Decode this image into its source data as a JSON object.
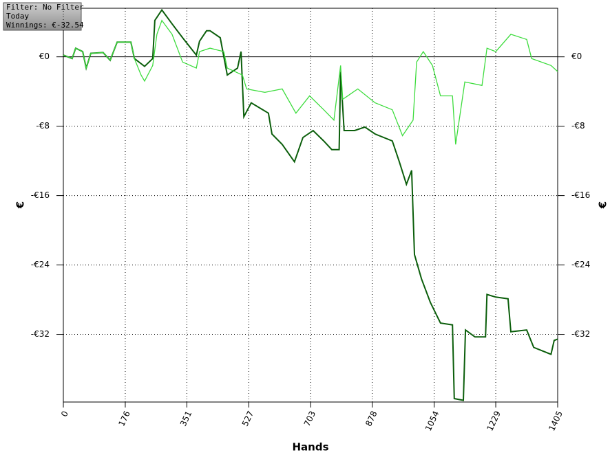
{
  "chart_data": {
    "type": "line",
    "info": [
      "Filter: No Filter",
      "Today",
      "Winnings: €-32.54"
    ],
    "xlabel": "Hands",
    "ylabel": "€",
    "xlim": [
      0,
      1405
    ],
    "ylim": [
      -39.8,
      5.6
    ],
    "xticks": [
      0,
      176,
      351,
      527,
      703,
      878,
      1054,
      1229,
      1405
    ],
    "yticks": [
      {
        "value": 0,
        "label": "€0"
      },
      {
        "value": -8,
        "label": "-€8"
      },
      {
        "value": -16,
        "label": "-€16"
      },
      {
        "value": -24,
        "label": "-€24"
      },
      {
        "value": -32,
        "label": "-€32"
      }
    ],
    "grid": true,
    "series": [
      {
        "color": "#0b5e0b",
        "x": [
          0,
          25,
          35,
          55,
          65,
          78,
          113,
          133,
          153,
          192,
          202,
          231,
          254,
          260,
          280,
          309,
          339,
          378,
          387,
          407,
          417,
          446,
          466,
          495,
          505,
          513,
          534,
          583,
          593,
          622,
          657,
          681,
          710,
          740,
          763,
          784,
          788,
          798,
          828,
          857,
          886,
          935,
          955,
          975,
          990,
          998,
          1018,
          1043,
          1072,
          1106,
          1111,
          1137,
          1143,
          1170,
          1200,
          1204,
          1229,
          1264,
          1272,
          1317,
          1337,
          1386,
          1395,
          1405
        ],
        "values": [
          0.2,
          -0.2,
          1.0,
          0.6,
          -1.3,
          0.4,
          0.5,
          -0.4,
          1.7,
          1.7,
          -0.2,
          -1.1,
          -0.2,
          4.2,
          5.4,
          3.8,
          2.2,
          0.2,
          1.8,
          3.0,
          3.0,
          2.2,
          -2.1,
          -1.3,
          0.6,
          -6.9,
          -5.3,
          -6.5,
          -8.9,
          -10.1,
          -12.1,
          -9.3,
          -8.5,
          -9.7,
          -10.7,
          -10.7,
          -1.7,
          -8.5,
          -8.5,
          -8.1,
          -8.9,
          -9.7,
          -12.1,
          -14.7,
          -13.1,
          -22.8,
          -25.6,
          -28.3,
          -30.7,
          -30.9,
          -39.4,
          -39.6,
          -31.5,
          -32.3,
          -32.3,
          -27.4,
          -27.7,
          -27.9,
          -31.7,
          -31.5,
          -33.5,
          -34.3,
          -32.7,
          -32.54
        ]
      },
      {
        "color": "#3ddc3d",
        "x": [
          0,
          25,
          35,
          55,
          65,
          78,
          113,
          133,
          153,
          192,
          202,
          221,
          231,
          254,
          266,
          280,
          309,
          339,
          378,
          387,
          417,
          456,
          466,
          509,
          521,
          573,
          622,
          661,
          700,
          740,
          769,
          788,
          794,
          837,
          886,
          935,
          964,
          994,
          1004,
          1023,
          1049,
          1072,
          1106,
          1115,
          1141,
          1190,
          1204,
          1229,
          1272,
          1317,
          1331,
          1386,
          1405
        ],
        "values": [
          0.2,
          -0.2,
          1.0,
          0.6,
          -1.3,
          0.4,
          0.5,
          -0.4,
          1.7,
          1.7,
          -0.2,
          -2.1,
          -2.8,
          -1.0,
          2.6,
          4.2,
          2.6,
          -0.6,
          -1.3,
          0.6,
          1.0,
          0.6,
          -1.3,
          -2.1,
          -3.7,
          -4.1,
          -3.7,
          -6.5,
          -4.5,
          -6.1,
          -7.3,
          -1.0,
          -4.9,
          -3.7,
          -5.3,
          -6.1,
          -9.1,
          -7.3,
          -0.6,
          0.6,
          -1.0,
          -4.5,
          -4.5,
          -10.1,
          -2.9,
          -3.3,
          1.0,
          0.6,
          2.6,
          2.0,
          -0.2,
          -1.0,
          -1.7
        ]
      }
    ]
  }
}
